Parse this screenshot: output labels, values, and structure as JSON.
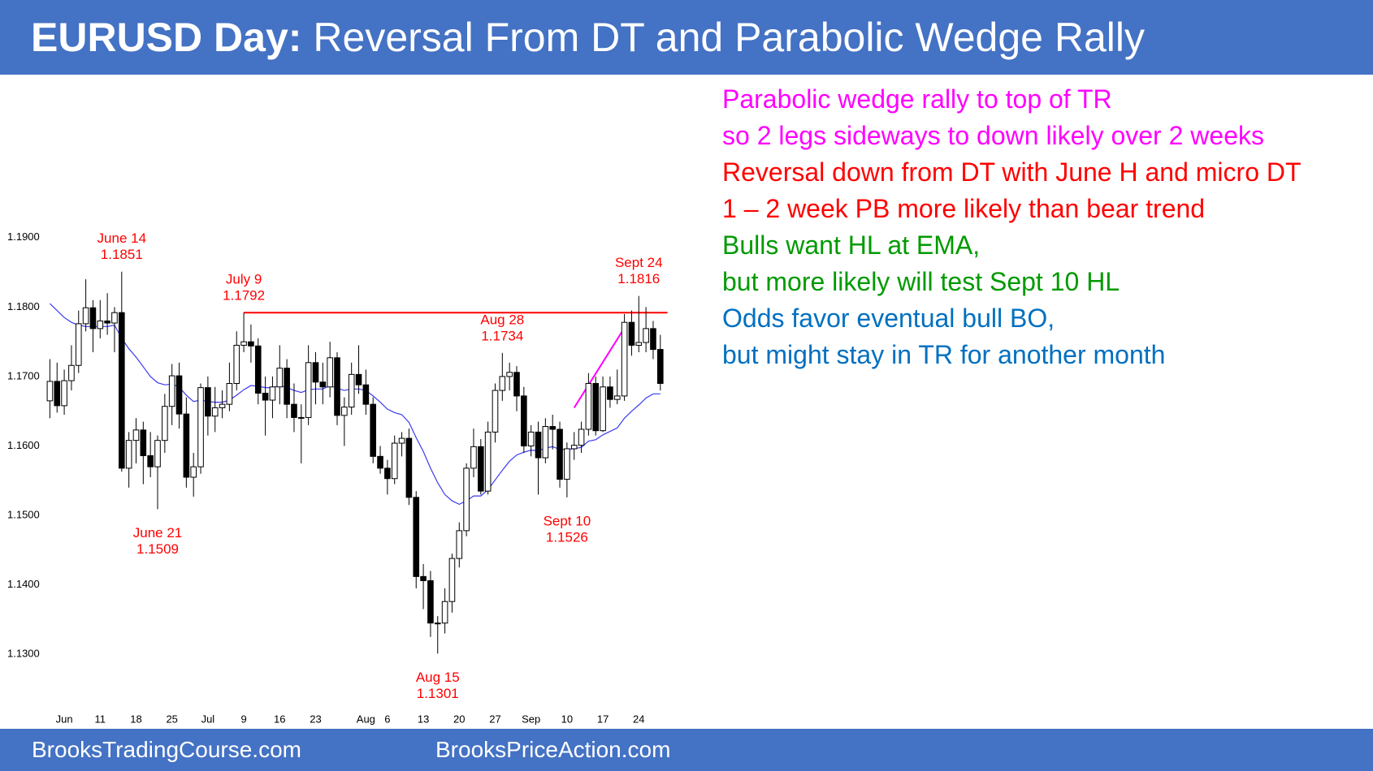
{
  "chart_data": {
    "type": "candlestick",
    "title_bold": "EURUSD Day:",
    "title": "Reversal From DT and Parabolic Wedge Rally",
    "footer_left": "BrooksTradingCourse.com",
    "footer_right": "BrooksPriceAction.com",
    "categories": [
      null,
      null,
      "Jun",
      null,
      null,
      null,
      null,
      "11",
      null,
      null,
      null,
      null,
      "18",
      null,
      null,
      null,
      null,
      "25",
      null,
      null,
      null,
      null,
      "Jul",
      null,
      null,
      null,
      null,
      "9",
      null,
      null,
      null,
      null,
      "16",
      null,
      null,
      null,
      null,
      "23",
      null,
      null,
      null,
      null,
      null,
      null,
      "Aug",
      null,
      null,
      "6",
      null,
      null,
      null,
      null,
      "13",
      null,
      null,
      null,
      null,
      "20",
      null,
      null,
      null,
      null,
      "27",
      null,
      null,
      null,
      null,
      "Sep",
      null,
      null,
      null,
      null,
      "10",
      null,
      null,
      null,
      null,
      "17",
      null,
      null,
      null,
      null,
      "24",
      null,
      null,
      null
    ],
    "open": [
      1.1665,
      1.1693,
      1.1658,
      1.1694,
      1.1716,
      1.1776,
      1.1799,
      1.1769,
      1.178,
      1.1777,
      1.1792,
      1.1568,
      1.1608,
      1.1623,
      1.1586,
      1.157,
      1.1608,
      1.1657,
      1.1701,
      1.1646,
      1.1555,
      1.157,
      1.1684,
      1.1643,
      1.1655,
      1.166,
      1.169,
      1.1745,
      1.175,
      1.1744,
      1.1676,
      1.1666,
      1.1685,
      1.1712,
      1.166,
      1.1641,
      1.1641,
      1.172,
      1.1692,
      1.1685,
      1.1727,
      1.1644,
      1.1656,
      1.1703,
      1.1688,
      1.166,
      1.1585,
      1.1568,
      1.1553,
      1.1604,
      1.1611,
      1.1526,
      1.1412,
      1.1406,
      1.1345,
      1.1345,
      1.1376,
      1.1438,
      1.1478,
      1.1568,
      1.1599,
      1.1535,
      1.162,
      1.168,
      1.17,
      1.1706,
      1.1672,
      1.16,
      1.162,
      1.1583,
      1.1628,
      1.1624,
      1.1552,
      1.1596,
      1.1601,
      1.1624,
      1.169,
      1.1622,
      1.1685,
      1.1667,
      1.1672,
      1.1778,
      1.1745,
      1.1749,
      1.1769,
      1.1739
    ],
    "high": [
      1.1725,
      1.172,
      1.171,
      1.1745,
      1.1795,
      1.184,
      1.181,
      1.181,
      1.182,
      1.18,
      1.1851,
      1.162,
      1.164,
      1.1635,
      1.162,
      1.1615,
      1.1675,
      1.1718,
      1.172,
      1.167,
      1.159,
      1.169,
      1.17,
      1.1685,
      1.168,
      1.172,
      1.1765,
      1.1792,
      1.1775,
      1.1755,
      1.17,
      1.17,
      1.1745,
      1.1725,
      1.169,
      1.166,
      1.1745,
      1.1735,
      1.172,
      1.175,
      1.1735,
      1.167,
      1.172,
      1.1745,
      1.171,
      1.167,
      1.16,
      1.158,
      1.1615,
      1.162,
      1.1625,
      1.1535,
      1.143,
      1.142,
      1.1355,
      1.1395,
      1.1445,
      1.149,
      1.1575,
      1.1625,
      1.161,
      1.1635,
      1.169,
      1.1734,
      1.172,
      1.1715,
      1.1685,
      1.163,
      1.1635,
      1.164,
      1.1645,
      1.1635,
      1.1605,
      1.162,
      1.1635,
      1.1705,
      1.17,
      1.17,
      1.17,
      1.171,
      1.179,
      1.1795,
      1.1816,
      1.18,
      1.178,
      1.176
    ],
    "low": [
      1.164,
      1.1648,
      1.1645,
      1.168,
      1.1705,
      1.1765,
      1.1735,
      1.1755,
      1.176,
      1.1735,
      1.1563,
      1.154,
      1.1575,
      1.1545,
      1.1555,
      1.1509,
      1.159,
      1.163,
      1.1625,
      1.154,
      1.1527,
      1.156,
      1.1615,
      1.162,
      1.164,
      1.165,
      1.168,
      1.1735,
      1.172,
      1.166,
      1.1615,
      1.164,
      1.166,
      1.164,
      1.162,
      1.1575,
      1.163,
      1.166,
      1.166,
      1.167,
      1.163,
      1.16,
      1.1645,
      1.1675,
      1.1645,
      1.1575,
      1.156,
      1.153,
      1.1545,
      1.1585,
      1.1515,
      1.1395,
      1.1365,
      1.1325,
      1.1301,
      1.133,
      1.136,
      1.1425,
      1.147,
      1.1555,
      1.153,
      1.153,
      1.1605,
      1.1665,
      1.168,
      1.165,
      1.159,
      1.1585,
      1.153,
      1.1575,
      1.1595,
      1.154,
      1.1526,
      1.158,
      1.159,
      1.1615,
      1.1615,
      1.162,
      1.1655,
      1.166,
      1.1665,
      1.173,
      1.1735,
      1.1735,
      1.1725,
      1.168
    ],
    "close": [
      1.1693,
      1.1658,
      1.1694,
      1.1716,
      1.1776,
      1.1799,
      1.1769,
      1.178,
      1.1777,
      1.1792,
      1.1568,
      1.1608,
      1.1623,
      1.1586,
      1.157,
      1.1608,
      1.1657,
      1.1701,
      1.1646,
      1.1555,
      1.157,
      1.1684,
      1.1643,
      1.1655,
      1.166,
      1.169,
      1.1745,
      1.175,
      1.1744,
      1.1676,
      1.1666,
      1.1685,
      1.1712,
      1.166,
      1.1641,
      1.1641,
      1.172,
      1.1692,
      1.1685,
      1.1727,
      1.1644,
      1.1656,
      1.1703,
      1.1688,
      1.166,
      1.1585,
      1.1568,
      1.1553,
      1.1604,
      1.1611,
      1.1526,
      1.1412,
      1.1406,
      1.1345,
      1.1345,
      1.1376,
      1.1438,
      1.1478,
      1.1568,
      1.1599,
      1.1535,
      1.162,
      1.168,
      1.17,
      1.1706,
      1.1672,
      1.16,
      1.162,
      1.1583,
      1.1628,
      1.1624,
      1.1552,
      1.1596,
      1.1601,
      1.1624,
      1.169,
      1.1622,
      1.1685,
      1.1667,
      1.1672,
      1.1778,
      1.1745,
      1.1749,
      1.1769,
      1.1739,
      1.169
    ],
    "ema": {
      "color": "#3a3af2",
      "values": [
        1.1805,
        1.1795,
        1.1785,
        1.1778,
        1.1774,
        1.1772,
        1.1772,
        1.1772,
        1.1772,
        1.1774,
        1.1755,
        1.174,
        1.1728,
        1.1714,
        1.17,
        1.1691,
        1.1688,
        1.1689,
        1.1685,
        1.1673,
        1.1664,
        1.1666,
        1.1664,
        1.1663,
        1.1663,
        1.1666,
        1.1673,
        1.1681,
        1.1687,
        1.1686,
        1.1684,
        1.1684,
        1.1687,
        1.1684,
        1.168,
        1.1677,
        1.1681,
        1.1682,
        1.1682,
        1.1687,
        1.1683,
        1.168,
        1.1682,
        1.1682,
        1.168,
        1.1672,
        1.1663,
        1.1653,
        1.1648,
        1.1645,
        1.1634,
        1.1612,
        1.1592,
        1.1568,
        1.1547,
        1.153,
        1.1521,
        1.1516,
        1.1521,
        1.1528,
        1.1528,
        1.1537,
        1.1551,
        1.1565,
        1.1578,
        1.1587,
        1.1591,
        1.1594,
        1.1593,
        1.1597,
        1.1599,
        1.1595,
        1.1595,
        1.1596,
        1.1598,
        1.1607,
        1.1609,
        1.1616,
        1.1621,
        1.1626,
        1.164,
        1.165,
        1.1659,
        1.1669,
        1.1675,
        1.1675
      ]
    },
    "up_color": "#ffffff",
    "down_color": "#000000",
    "resistance": {
      "value": 1.1792,
      "color": "#ff0000"
    },
    "trendline": {
      "x": [
        73,
        80
      ],
      "values": [
        1.1655,
        1.177
      ],
      "color": "#ff00ff"
    },
    "annotations": [
      {
        "date": "June 14",
        "price": 1.1851
      },
      {
        "date": "June 21",
        "price": 1.1509
      },
      {
        "date": "July 9",
        "price": 1.1792
      },
      {
        "date": "Aug 15",
        "price": 1.1301
      },
      {
        "date": "Aug 28",
        "price": 1.1734
      },
      {
        "date": "Sept 10",
        "price": 1.1526
      },
      {
        "date": "Sept 24",
        "price": 1.1816
      }
    ],
    "annotation_color": "#ff0000",
    "ylim": [
      1.125,
      1.195
    ],
    "yticks": [
      {
        "value": 1.13,
        "label": "1.1300"
      },
      {
        "value": 1.14,
        "label": "1.1400"
      },
      {
        "value": 1.15,
        "label": "1.1500"
      },
      {
        "value": 1.16,
        "label": "1.1600"
      },
      {
        "value": 1.17,
        "label": "1.1700"
      },
      {
        "value": 1.18,
        "label": "1.1800"
      },
      {
        "value": 1.19,
        "label": "1.1900"
      }
    ],
    "grid": false,
    "commentary": [
      {
        "text": "Parabolic wedge rally to top of TR",
        "color": "#ff00ff"
      },
      {
        "text": "so 2 legs sideways to down likely over 2 weeks",
        "color": "#ff00ff"
      },
      {
        "text": "Reversal down from DT with June H and micro DT",
        "color": "#ff0000"
      },
      {
        "text": "1 – 2 week PB more likely than bear trend",
        "color": "#ff0000"
      },
      {
        "text": "Bulls want HL at EMA,",
        "color": "#009a00"
      },
      {
        "text": "but more likely will test Sept 10 HL",
        "color": "#009a00"
      },
      {
        "text": "Odds favor eventual bull BO,",
        "color": "#0070c0"
      },
      {
        "text": "but might stay in TR for another month",
        "color": "#0070c0"
      }
    ]
  }
}
